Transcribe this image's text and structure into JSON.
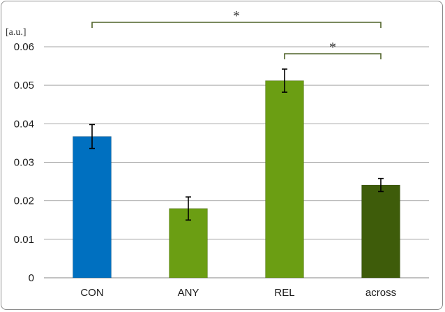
{
  "chart_data": {
    "type": "bar",
    "title": "",
    "xlabel": "",
    "ylabel": "[a.u.]",
    "ylim": [
      0,
      0.06
    ],
    "yticks": [
      "0",
      "0.01",
      "0.02",
      "0.03",
      "0.04",
      "0.05",
      "0.06"
    ],
    "grid": true,
    "categories": [
      "CON",
      "ANY",
      "REL",
      "across"
    ],
    "values": [
      0.0367,
      0.018,
      0.0512,
      0.0241
    ],
    "errors": [
      0.0031,
      0.003,
      0.003,
      0.0017
    ],
    "colors": [
      "#0070C0",
      "#6B9E13",
      "#6B9E13",
      "#3E5C0A"
    ],
    "significance": [
      {
        "from": "CON",
        "to": "across",
        "label": "*"
      },
      {
        "from": "REL",
        "to": "across",
        "label": "*"
      }
    ]
  }
}
